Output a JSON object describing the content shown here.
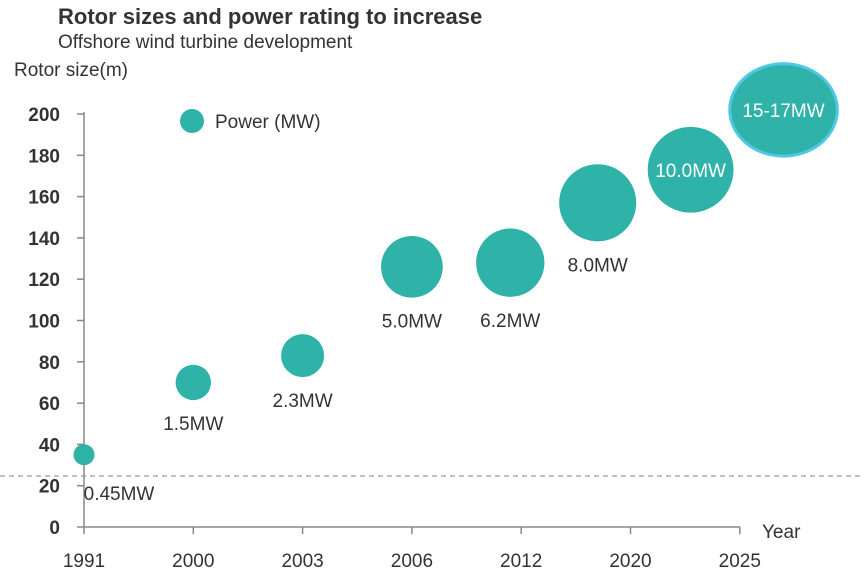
{
  "chart_data": {
    "type": "bubble",
    "title": "Rotor sizes and power rating to increase",
    "subtitle": "Offshore wind turbine development",
    "ylabel": "Rotor size(m)",
    "xlabel": "Year",
    "x_ticks": [
      "1991",
      "2000",
      "2003",
      "2006",
      "2012",
      "2020",
      "2025"
    ],
    "y_ticks": [
      0,
      20,
      40,
      60,
      80,
      100,
      120,
      140,
      160,
      180,
      200
    ],
    "ylim": [
      0,
      200
    ],
    "legend": "Power (MW)",
    "color": "#2fb2a8",
    "highlight_color": "#4fc8e6",
    "points": [
      {
        "x": 0.0,
        "rotor": 35,
        "power": 0.45,
        "label": "0.45MW"
      },
      {
        "x": 1.0,
        "rotor": 70,
        "power": 1.5,
        "label": "1.5MW"
      },
      {
        "x": 2.0,
        "rotor": 83,
        "power": 2.3,
        "label": "2.3MW"
      },
      {
        "x": 3.0,
        "rotor": 126,
        "power": 5.0,
        "label": "5.0MW"
      },
      {
        "x": 3.9,
        "rotor": 128,
        "power": 6.2,
        "label": "6.2MW"
      },
      {
        "x": 4.7,
        "rotor": 157,
        "power": 8.0,
        "label": "8.0MW"
      },
      {
        "x": 5.55,
        "rotor": 173,
        "power": 10.0,
        "label": "10.0MW"
      },
      {
        "x": 6.4,
        "rotor": 202,
        "power": 16.0,
        "label": "15-17MW"
      }
    ]
  }
}
